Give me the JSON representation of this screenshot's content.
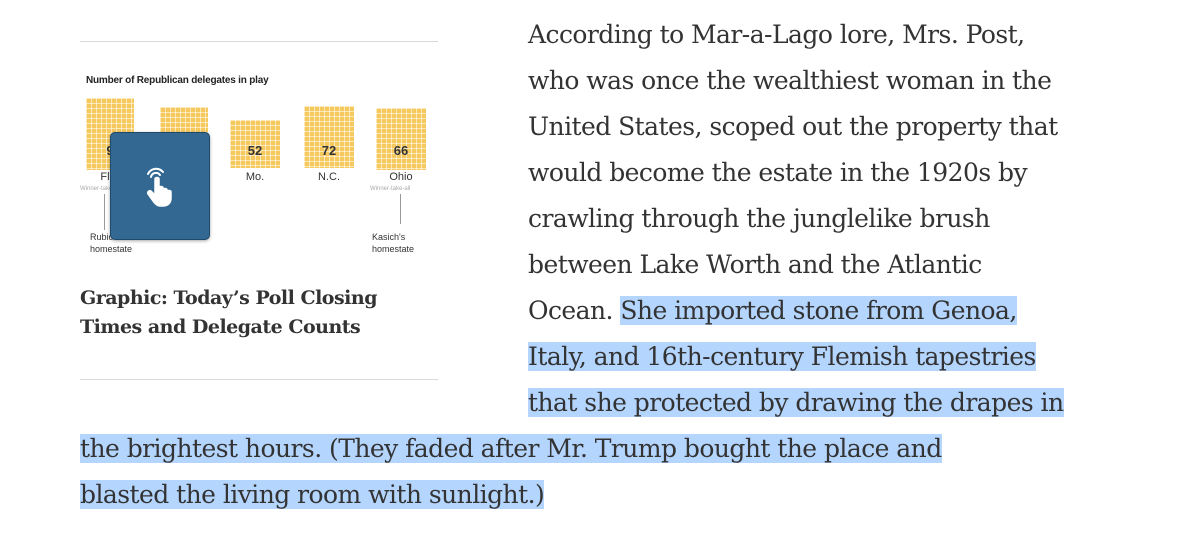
{
  "graphic": {
    "title": "Number of Republican delegates in play",
    "states": [
      {
        "name": "Fl",
        "value": "9"
      },
      {
        "name": "",
        "value": ""
      },
      {
        "name": "Mo.",
        "value": "52"
      },
      {
        "name": "N.C.",
        "value": "72"
      },
      {
        "name": "Ohio",
        "value": "66"
      }
    ],
    "tiny_left": "Winner-take-all",
    "tiny_right": "Winner-take-all",
    "note_left": [
      "Rubio's",
      "homestate"
    ],
    "note_right": [
      "Kasich's",
      "homestate"
    ],
    "badge_icon": "pointing-hand-icon",
    "caption": [
      "Graphic: Today’s Poll Closing",
      "Times and Delegate Counts"
    ]
  },
  "article": {
    "lines": [
      {
        "text": "According to Mar-a-Lago lore, Mrs. Post,",
        "highlight": ""
      },
      {
        "text": "who was once the wealthiest woman in the",
        "highlight": ""
      },
      {
        "text": "United States, scoped out the property that",
        "highlight": ""
      },
      {
        "text": "would become the estate in the 1920s by",
        "highlight": ""
      },
      {
        "text": "crawling through the junglelike brush",
        "highlight": ""
      },
      {
        "text": "between Lake Worth and the Atlantic",
        "highlight": ""
      },
      {
        "text": "Ocean. ",
        "highlight": "She imported stone from Genoa,"
      },
      {
        "text": "",
        "highlight": "Italy, and 16th-century Flemish tapestries"
      },
      {
        "text": "",
        "highlight": "that she protected by drawing the drapes in"
      },
      {
        "text": "",
        "highlight": "the brightest hours. (They faded after Mr. Trump bought the place and"
      },
      {
        "text": "",
        "highlight": "blasted the living room with sunlight.)"
      }
    ]
  },
  "colors": {
    "selection": "#b4d5fe",
    "badge": "#326891",
    "block": "#f6c95f",
    "text": "#333333"
  }
}
